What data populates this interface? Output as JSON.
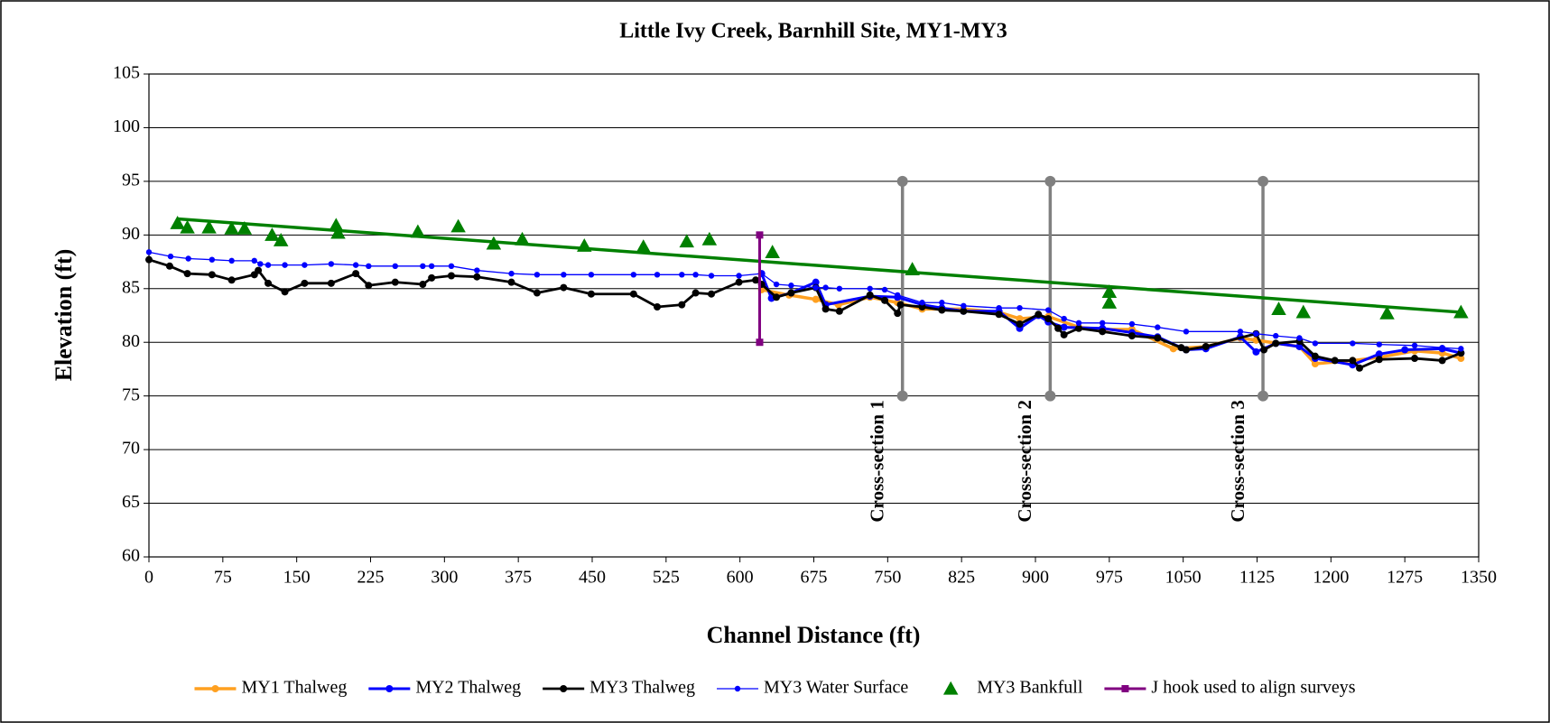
{
  "chart_data": {
    "type": "line",
    "title": "Little Ivy Creek, Barnhill Site, MY1-MY3",
    "xlabel": "Channel Distance (ft)",
    "ylabel": "Elevation (ft)",
    "xlim": [
      0,
      1350
    ],
    "ylim": [
      60,
      105
    ],
    "xticks": [
      0,
      75,
      150,
      225,
      300,
      375,
      450,
      525,
      600,
      675,
      750,
      825,
      900,
      975,
      1050,
      1125,
      1200,
      1275,
      1350
    ],
    "yticks": [
      60,
      65,
      70,
      75,
      80,
      85,
      90,
      95,
      100,
      105
    ],
    "grid": true,
    "legend": "bottom",
    "series": [
      {
        "name": "MY1 Thalweg",
        "color": "#ffa020",
        "marker": "circle",
        "line": true,
        "line_width": 3.5,
        "x": [
          622,
          650,
          677,
          700,
          732,
          760,
          785,
          827,
          863,
          884,
          913,
          944,
          968,
          998,
          1040,
          1073,
          1108,
          1124,
          1168,
          1184,
          1222,
          1249,
          1285,
          1313,
          1332
        ],
        "values": [
          84.9,
          84.4,
          84.0,
          83.5,
          84.2,
          83.7,
          83.1,
          83.1,
          82.8,
          82.2,
          82.4,
          81.4,
          81.2,
          81.2,
          79.4,
          79.6,
          80.4,
          80.2,
          79.6,
          78.0,
          78.3,
          78.6,
          79.2,
          79.0,
          78.5
        ]
      },
      {
        "name": "MY2 Thalweg",
        "color": "#0000ff",
        "marker": "circle",
        "line": true,
        "line_width": 3,
        "x": [
          622,
          632,
          652,
          677,
          687,
          732,
          760,
          785,
          805,
          827,
          863,
          884,
          903,
          913,
          929,
          968,
          998,
          1024,
          1053,
          1073,
          1108,
          1124,
          1144,
          1168,
          1184,
          1222,
          1249,
          1275,
          1313,
          1332
        ],
        "values": [
          86.4,
          84.1,
          84.6,
          85.6,
          83.5,
          84.3,
          84.2,
          83.5,
          83.2,
          82.9,
          82.9,
          81.3,
          82.5,
          81.9,
          81.4,
          81.3,
          80.9,
          80.5,
          79.3,
          79.4,
          80.5,
          79.1,
          79.9,
          79.6,
          78.5,
          77.9,
          78.9,
          79.3,
          79.4,
          79.0
        ]
      },
      {
        "name": "MY3 Thalweg",
        "color": "#000000",
        "marker": "circle",
        "line": true,
        "line_width": 2.8,
        "x": [
          0,
          21,
          39,
          64,
          84,
          107,
          111,
          121,
          138,
          158,
          185,
          210,
          223,
          250,
          278,
          287,
          307,
          333,
          368,
          394,
          421,
          449,
          492,
          516,
          541,
          555,
          571,
          599,
          616,
          622,
          637,
          652,
          677,
          687,
          701,
          732,
          747,
          760,
          763,
          785,
          805,
          827,
          863,
          884,
          903,
          913,
          923,
          929,
          944,
          968,
          998,
          1024,
          1048,
          1053,
          1073,
          1124,
          1132,
          1144,
          1168,
          1184,
          1204,
          1222,
          1229,
          1249,
          1285,
          1313,
          1332
        ],
        "values": [
          87.7,
          87.1,
          86.4,
          86.3,
          85.8,
          86.3,
          86.7,
          85.5,
          84.7,
          85.5,
          85.5,
          86.4,
          85.3,
          85.6,
          85.4,
          86.0,
          86.2,
          86.1,
          85.6,
          84.6,
          85.1,
          84.5,
          84.5,
          83.3,
          83.5,
          84.6,
          84.5,
          85.6,
          85.8,
          85.4,
          84.2,
          84.6,
          85.1,
          83.1,
          82.9,
          84.4,
          83.9,
          82.7,
          83.5,
          83.3,
          83.0,
          82.9,
          82.6,
          81.7,
          82.6,
          82.2,
          81.3,
          80.7,
          81.3,
          81.0,
          80.6,
          80.4,
          79.5,
          79.3,
          79.6,
          80.8,
          79.3,
          79.9,
          80.1,
          78.7,
          78.3,
          78.3,
          77.6,
          78.4,
          78.5,
          78.3,
          79.0
        ]
      },
      {
        "name": "MY3 Water Surface",
        "color": "#0000ff",
        "marker": "circle",
        "line": true,
        "line_width": 1.3,
        "x": [
          0,
          22,
          40,
          64,
          84,
          107,
          113,
          121,
          138,
          158,
          185,
          210,
          223,
          250,
          278,
          287,
          307,
          333,
          368,
          394,
          421,
          449,
          492,
          516,
          541,
          555,
          571,
          599,
          622,
          637,
          652,
          677,
          687,
          701,
          732,
          747,
          760,
          785,
          805,
          827,
          863,
          884,
          913,
          929,
          944,
          968,
          998,
          1024,
          1053,
          1108,
          1124,
          1144,
          1168,
          1184,
          1222,
          1249,
          1285,
          1313,
          1332
        ],
        "values": [
          88.4,
          88.0,
          87.8,
          87.7,
          87.6,
          87.6,
          87.3,
          87.2,
          87.2,
          87.2,
          87.3,
          87.2,
          87.1,
          87.1,
          87.1,
          87.1,
          87.1,
          86.7,
          86.4,
          86.3,
          86.3,
          86.3,
          86.3,
          86.3,
          86.3,
          86.3,
          86.2,
          86.2,
          86.4,
          85.4,
          85.3,
          85.1,
          85.1,
          85.0,
          85.0,
          84.9,
          84.4,
          83.7,
          83.7,
          83.4,
          83.2,
          83.2,
          83.0,
          82.2,
          81.8,
          81.8,
          81.7,
          81.4,
          81.0,
          81.0,
          80.8,
          80.6,
          80.4,
          79.9,
          79.9,
          79.8,
          79.7,
          79.5,
          79.4
        ]
      },
      {
        "name": "MY3 Bankfull",
        "color": "#008000",
        "marker": "triangle",
        "line": false,
        "x": [
          29,
          39,
          61,
          84,
          97,
          125,
          134,
          190,
          192,
          273,
          314,
          350,
          379,
          442,
          502,
          546,
          569,
          633,
          775,
          975,
          975,
          1147,
          1172,
          1257,
          1332
        ],
        "values": [
          91.1,
          90.7,
          90.7,
          90.6,
          90.6,
          90.0,
          89.5,
          90.9,
          90.2,
          90.3,
          90.8,
          89.2,
          89.6,
          89.0,
          88.9,
          89.4,
          89.6,
          88.4,
          86.8,
          84.7,
          83.7,
          83.1,
          82.8,
          82.7,
          82.8
        ]
      },
      {
        "name": "J hook used to align surveys",
        "color": "#800080",
        "marker": "square",
        "line": true,
        "line_width": 3,
        "x": [
          620,
          620
        ],
        "values": [
          80,
          90
        ]
      }
    ],
    "trendline": {
      "color": "#008000",
      "x": [
        29,
        1332
      ],
      "values": [
        91.5,
        82.8
      ]
    },
    "annotations": [
      {
        "text": "Cross-section 1",
        "x": 765,
        "y": [
          75,
          95
        ],
        "color": "#808080"
      },
      {
        "text": "Cross-section 2",
        "x": 915,
        "y": [
          75,
          95
        ],
        "color": "#808080"
      },
      {
        "text": "Cross-section 3",
        "x": 1131,
        "y": [
          75,
          95
        ],
        "color": "#808080"
      }
    ]
  }
}
